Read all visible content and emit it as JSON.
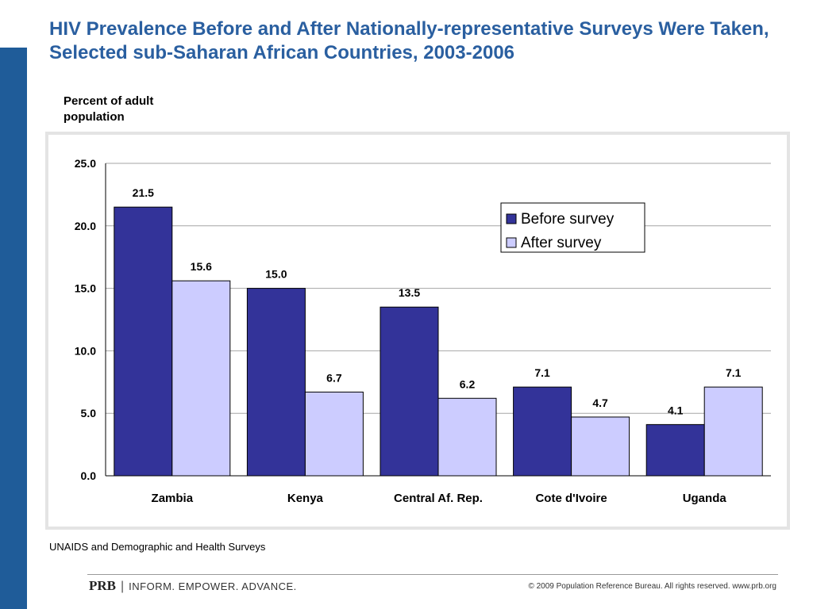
{
  "title": "HIV Prevalence Before and After Nationally-representative Surveys Were Taken, Selected sub-Saharan African Countries, 2003-2006",
  "source": "UNAIDS and Demographic and Health Surveys",
  "footer": {
    "brand": "PRB",
    "separator": "|",
    "tagline": "INFORM. EMPOWER. ADVANCE.",
    "copyright": "© 2009 Population Reference Bureau. All rights reserved. www.prb.org"
  },
  "colors": {
    "before": "#333399",
    "after": "#ccccff",
    "title": "#2a5fa0",
    "sidebar": "#1f5c99"
  },
  "chart_data": {
    "type": "bar",
    "ylabel": "Percent of adult population",
    "categories": [
      "Zambia",
      "Kenya",
      "Central Af. Rep.",
      "Cote d'Ivoire",
      "Uganda"
    ],
    "series": [
      {
        "name": "Before survey",
        "color": "#333399",
        "values": [
          21.5,
          15.0,
          13.5,
          7.1,
          4.1
        ]
      },
      {
        "name": "After survey",
        "color": "#ccccff",
        "values": [
          15.6,
          6.7,
          6.2,
          4.7,
          7.1
        ]
      }
    ],
    "ylim": [
      0,
      25
    ],
    "yticks": [
      "0.0",
      "5.0",
      "10.0",
      "15.0",
      "20.0",
      "25.0"
    ],
    "grid": true,
    "legend": "top-right"
  }
}
